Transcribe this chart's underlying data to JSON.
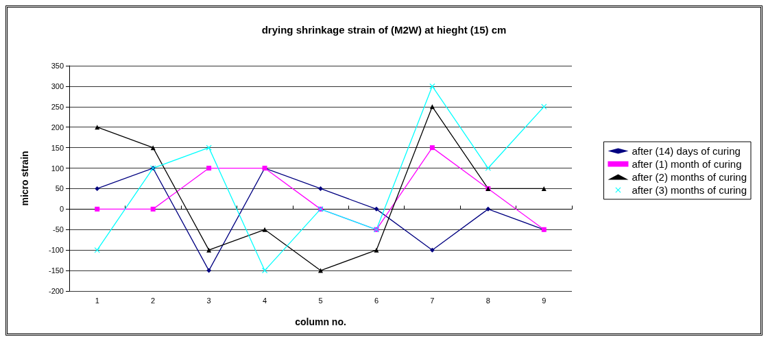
{
  "chart_data": {
    "type": "line",
    "title": "drying shrinkage strain of (M2W) at hieght (15) cm",
    "xlabel": "column no.",
    "ylabel": "micro strain",
    "categories": [
      "1",
      "2",
      "3",
      "4",
      "5",
      "6",
      "7",
      "8",
      "9"
    ],
    "ylim": [
      -200,
      350
    ],
    "yticks": [
      -200,
      -150,
      -100,
      -50,
      0,
      50,
      100,
      150,
      200,
      250,
      300,
      350
    ],
    "grid": "y",
    "legend": "right",
    "series": [
      {
        "name": "after (14) days of curing",
        "color": "#000080",
        "marker": "diamond",
        "values": [
          50,
          100,
          -150,
          100,
          50,
          0,
          -100,
          0,
          -50
        ]
      },
      {
        "name": "after (1) month of curing",
        "color": "#ff00ff",
        "marker": "square",
        "values": [
          0,
          0,
          100,
          100,
          0,
          -50,
          150,
          50,
          -50
        ]
      },
      {
        "name": "after (2) months of curing",
        "color": "#000000",
        "marker": "triangle",
        "values": [
          200,
          150,
          -100,
          -50,
          -150,
          -100,
          250,
          50,
          50
        ]
      },
      {
        "name": "after (3) months of curing",
        "color": "#00ffff",
        "marker": "cross",
        "values": [
          -100,
          100,
          150,
          -150,
          0,
          -50,
          300,
          100,
          250
        ]
      }
    ]
  }
}
